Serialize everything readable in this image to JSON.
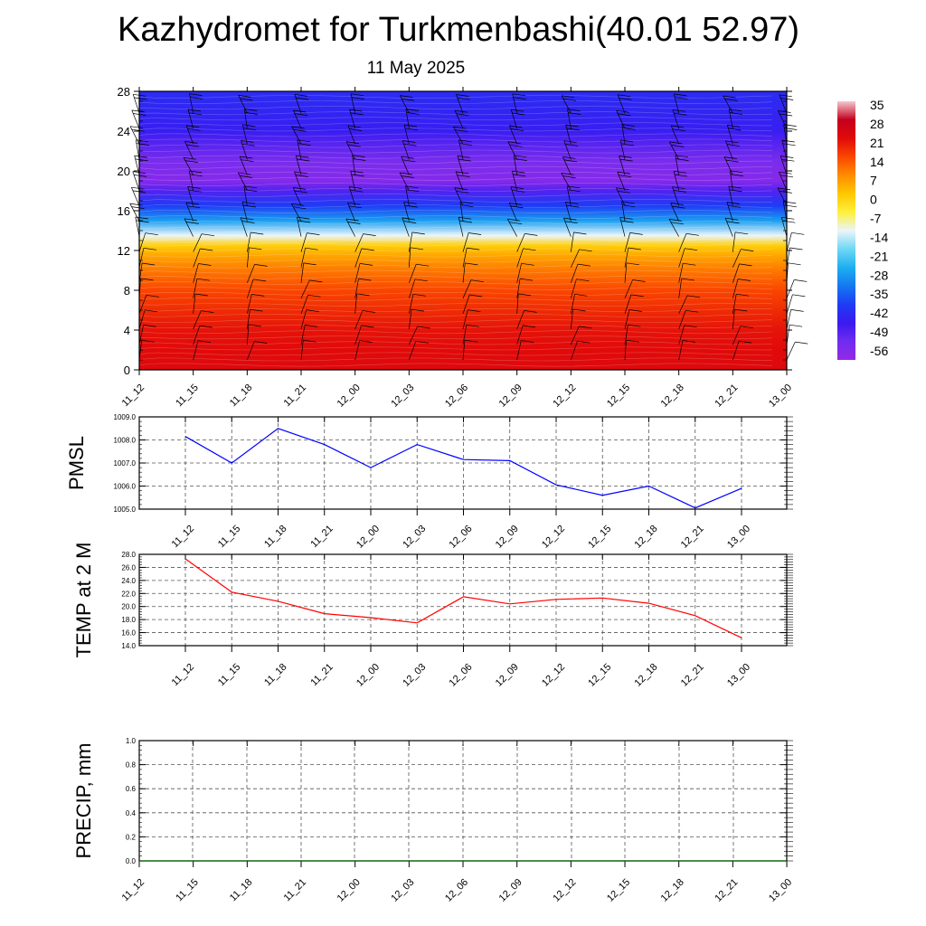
{
  "page": {
    "title": "Kazhydromet for Turkmenbashi(40.01 52.97)",
    "date": "11 May 2025"
  },
  "colors": {
    "pmsl_line": "#0000ff",
    "temp_line": "#ff0000",
    "precip_line": "#006400",
    "grid": "#555555"
  },
  "chart_data": [
    {
      "id": "cross-section",
      "type": "heatmap",
      "xlabel": "",
      "ylabel": "",
      "x_ticks": [
        "11_12",
        "11_15",
        "11_18",
        "11_21",
        "12_00",
        "12_03",
        "12_06",
        "12_09",
        "12_12",
        "12_15",
        "12_18",
        "12_21",
        "13_00"
      ],
      "y_ticks": [
        0,
        4,
        8,
        12,
        16,
        20,
        24,
        28
      ],
      "ylim": [
        0,
        28
      ],
      "colorbar": {
        "labels": [
          "35",
          "28",
          "21",
          "14",
          "7",
          "0",
          "-7",
          "-14",
          "-21",
          "-28",
          "-35",
          "-42",
          "-49",
          "-56"
        ],
        "range": [
          -63,
          35
        ]
      },
      "temperature_profile": [
        {
          "level": 0,
          "value": 22
        },
        {
          "level": 2,
          "value": 21
        },
        {
          "level": 4,
          "value": 20
        },
        {
          "level": 6,
          "value": 17
        },
        {
          "level": 8,
          "value": 14
        },
        {
          "level": 10,
          "value": 9
        },
        {
          "level": 11.5,
          "value": 4
        },
        {
          "level": 12.5,
          "value": -1
        },
        {
          "level": 13.5,
          "value": -14
        },
        {
          "level": 15,
          "value": -30
        },
        {
          "level": 16.5,
          "value": -42
        },
        {
          "level": 18,
          "value": -52
        },
        {
          "level": 19,
          "value": -60
        },
        {
          "level": 21,
          "value": -58
        },
        {
          "level": 23,
          "value": -52
        },
        {
          "level": 24,
          "value": -48
        },
        {
          "level": 28,
          "value": -45
        }
      ],
      "wind_barbs": "shown"
    },
    {
      "id": "pmsl",
      "type": "line",
      "ylabel": "PMSL",
      "x": [
        "11_12",
        "11_15",
        "11_18",
        "11_21",
        "12_00",
        "12_03",
        "12_06",
        "12_09",
        "12_12",
        "12_15",
        "12_18",
        "12_21",
        "13_00"
      ],
      "series": [
        {
          "values": [
            1008.15,
            1007.0,
            1008.5,
            1007.8,
            1006.8,
            1007.8,
            1007.15,
            1007.1,
            1006.05,
            1005.6,
            1006.0,
            1005.05,
            1005.9
          ]
        }
      ],
      "ylim": [
        1005.0,
        1009.0
      ],
      "y_ticks": [
        "1005.0",
        "1006.0",
        "1007.0",
        "1008.0",
        "1009.0"
      ],
      "grid": true
    },
    {
      "id": "temp2m",
      "type": "line",
      "ylabel": "TEMP at 2 M",
      "x": [
        "11_12",
        "11_15",
        "11_18",
        "11_21",
        "12_00",
        "12_03",
        "12_06",
        "12_09",
        "12_12",
        "12_15",
        "12_18",
        "12_21",
        "13_00"
      ],
      "series": [
        {
          "values": [
            27.3,
            22.2,
            20.8,
            18.9,
            18.3,
            17.5,
            21.5,
            20.4,
            21.1,
            21.3,
            20.5,
            18.6,
            15.2
          ]
        }
      ],
      "ylim": [
        14.0,
        28.0
      ],
      "y_ticks": [
        "14.0",
        "16.0",
        "18.0",
        "20.0",
        "22.0",
        "24.0",
        "26.0",
        "28.0"
      ],
      "grid": true
    },
    {
      "id": "precip",
      "type": "line",
      "ylabel": "PRECIP, mm",
      "x": [
        "11_12",
        "11_15",
        "11_18",
        "11_21",
        "12_00",
        "12_03",
        "12_06",
        "12_09",
        "12_12",
        "12_15",
        "12_18",
        "12_21",
        "13_00"
      ],
      "series": [
        {
          "values": [
            0,
            0,
            0,
            0,
            0,
            0,
            0,
            0,
            0,
            0,
            0,
            0,
            0
          ]
        }
      ],
      "ylim": [
        0.0,
        1.0
      ],
      "y_ticks": [
        "0.0",
        "0.2",
        "0.4",
        "0.6",
        "0.8",
        "1.0"
      ],
      "grid": true
    }
  ]
}
